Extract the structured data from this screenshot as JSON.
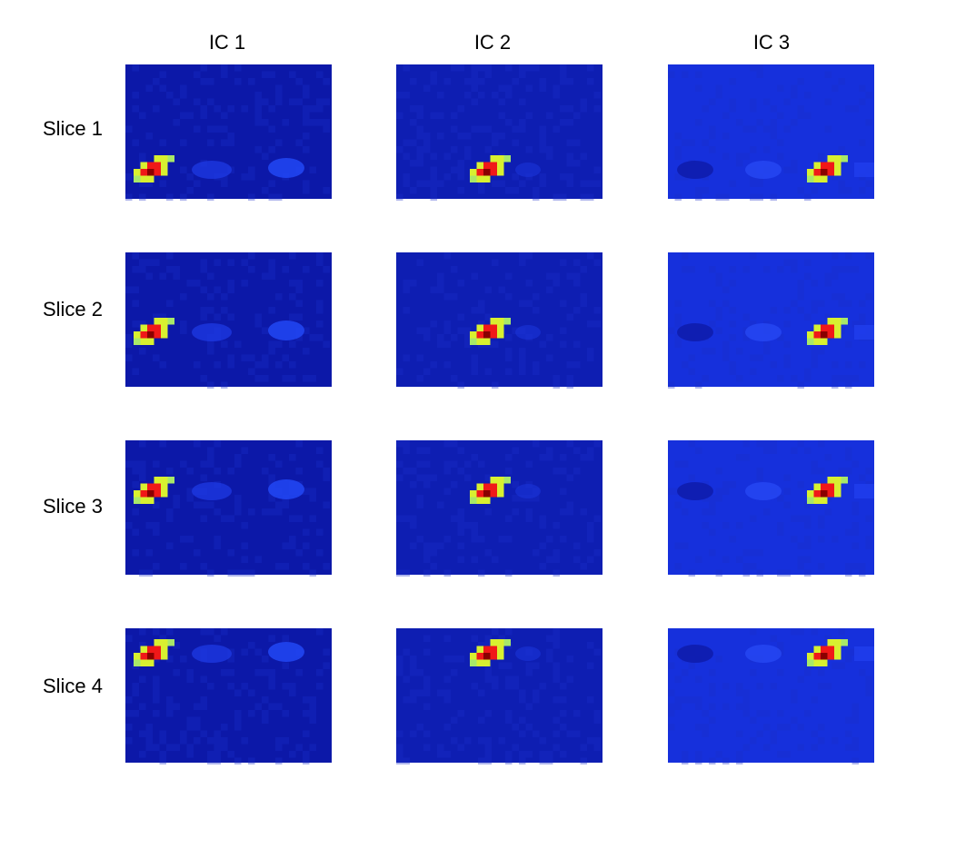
{
  "columns": [
    "IC 1",
    "IC 2",
    "IC 3"
  ],
  "rows": [
    "Slice 1",
    "Slice 2",
    "Slice 3",
    "Slice 4"
  ]
}
